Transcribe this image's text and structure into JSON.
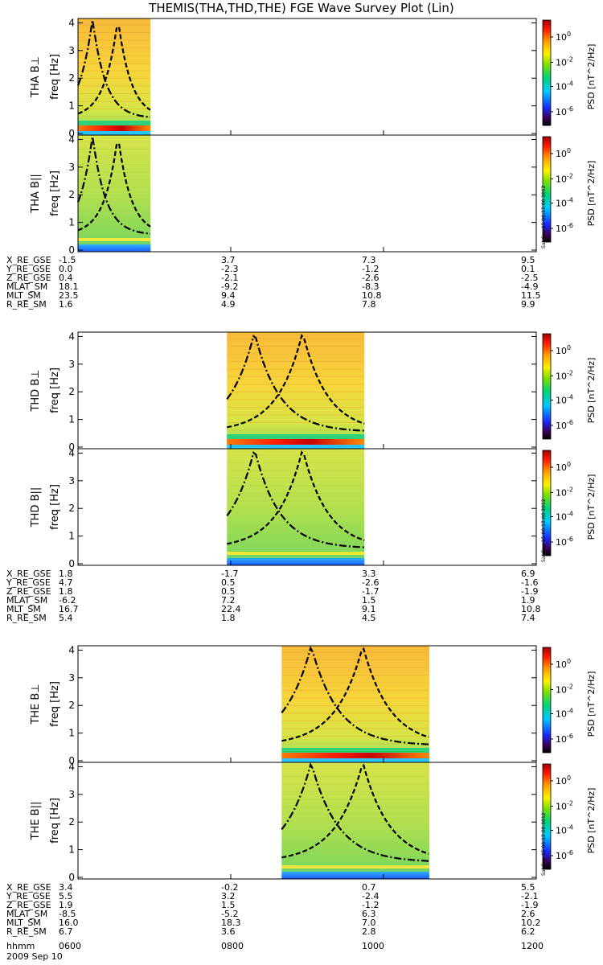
{
  "chart_data": {
    "type": "heatmap",
    "title": "THEMIS(THA,THD,THE) FGE Wave Survey Plot (Lin)",
    "date_label": "2009 Sep 10",
    "time_axis": {
      "label": "hhmm",
      "ticks": [
        "0600",
        "0800",
        "1000",
        "1200"
      ],
      "range": [
        "06:00",
        "12:00"
      ]
    },
    "freq_axis": {
      "label": "freq [Hz]",
      "ticks": [
        "0",
        "1",
        "2",
        "3",
        "4"
      ],
      "ylim": [
        0,
        4.1
      ]
    },
    "colorbar": {
      "label": "PSD [nT^2/Hz]",
      "ticks": [
        "10^0",
        "10^-2",
        "10^-4",
        "10^-6"
      ],
      "scale": "log"
    },
    "stamp": "Sat Sep 15 00:12:00 2012",
    "probes": [
      {
        "name": "THA",
        "panels": [
          {
            "label": "THA B⊥",
            "data_start": "06:00",
            "data_end": "06:57",
            "dominant_level": "yellow-orange",
            "low_freq_band_hz": 0.3
          },
          {
            "label": "THA B||",
            "data_start": "06:00",
            "data_end": "06:57",
            "dominant_level": "green-yellow",
            "low_freq_band_hz": 0.3
          }
        ],
        "ephemeris": [
          {
            "name": "X_RE_GSE",
            "values": [
              "-1.5",
              "3.7",
              "7.3",
              "9.5"
            ]
          },
          {
            "name": "Y_RE_GSE",
            "values": [
              "0.0",
              "-2.3",
              "-1.2",
              "0.1"
            ]
          },
          {
            "name": "Z_RE_GSE",
            "values": [
              "0.4",
              "-2.1",
              "-2.6",
              "-2.5"
            ]
          },
          {
            "name": "MLAT_SM",
            "values": [
              "18.1",
              "-9.2",
              "-8.3",
              "-4.9"
            ]
          },
          {
            "name": "MLT_SM",
            "values": [
              "23.5",
              "9.4",
              "10.8",
              "11.5"
            ]
          },
          {
            "name": "R_RE_SM",
            "values": [
              "1.6",
              "4.9",
              "7.8",
              "9.9"
            ]
          }
        ]
      },
      {
        "name": "THD",
        "panels": [
          {
            "label": "THD B⊥",
            "data_start": "07:57",
            "data_end": "09:45",
            "dominant_level": "yellow-orange",
            "low_freq_band_hz": 0.3
          },
          {
            "label": "THD B||",
            "data_start": "07:57",
            "data_end": "09:45",
            "dominant_level": "green-yellow",
            "low_freq_band_hz": 0.3
          }
        ],
        "ephemeris": [
          {
            "name": "X_RE_GSE",
            "values": [
              "1.8",
              "-1.7",
              "3.3",
              "6.9"
            ]
          },
          {
            "name": "Y_RE_GSE",
            "values": [
              "4.7",
              "0.5",
              "-2.6",
              "-1.6"
            ]
          },
          {
            "name": "Z_RE_GSE",
            "values": [
              "1.8",
              "0.5",
              "-1.7",
              "-1.9"
            ]
          },
          {
            "name": "MLAT_SM",
            "values": [
              "-6.2",
              "7.2",
              "1.5",
              "1.9"
            ]
          },
          {
            "name": "MLT_SM",
            "values": [
              "16.7",
              "22.4",
              "9.1",
              "10.8"
            ]
          },
          {
            "name": "R_RE_SM",
            "values": [
              "5.4",
              "1.8",
              "4.5",
              "7.4"
            ]
          }
        ]
      },
      {
        "name": "THE",
        "panels": [
          {
            "label": "THE B⊥",
            "data_start": "08:40",
            "data_end": "10:36",
            "dominant_level": "yellow-orange",
            "low_freq_band_hz": 0.3
          },
          {
            "label": "THE B||",
            "data_start": "08:40",
            "data_end": "10:36",
            "dominant_level": "green-yellow",
            "low_freq_band_hz": 0.3
          }
        ],
        "ephemeris": [
          {
            "name": "X_RE_GSE",
            "values": [
              "3.4",
              "-0.2",
              "0.7",
              "5.5"
            ]
          },
          {
            "name": "Y_RE_GSE",
            "values": [
              "5.5",
              "3.2",
              "-2.4",
              "-2.1"
            ]
          },
          {
            "name": "Z_RE_GSE",
            "values": [
              "1.9",
              "1.5",
              "-1.2",
              "-1.9"
            ]
          },
          {
            "name": "MLAT_SM",
            "values": [
              "-8.5",
              "-5.2",
              "6.3",
              "2.6"
            ]
          },
          {
            "name": "MLT_SM",
            "values": [
              "16.0",
              "18.3",
              "7.0",
              "10.2"
            ]
          },
          {
            "name": "R_RE_SM",
            "values": [
              "6.7",
              "3.6",
              "2.8",
              "6.2"
            ]
          }
        ]
      }
    ]
  }
}
